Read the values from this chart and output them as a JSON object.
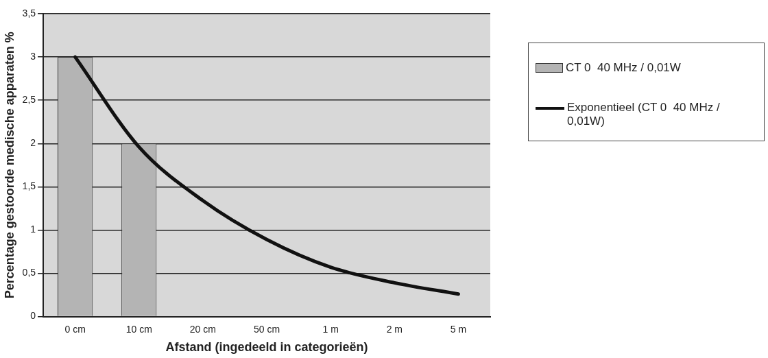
{
  "chart_data": {
    "type": "bar",
    "xlabel": "Afstand (ingedeeld in categorieën)",
    "ylabel": "Percentage gestoorde medische apparaten %",
    "categories": [
      "0 cm",
      "10 cm",
      "20 cm",
      "50 cm",
      "1 m",
      "2 m",
      "5 m"
    ],
    "series": [
      {
        "name": "CT 0  40 MHz / 0,01W",
        "color": "#b4b4b4",
        "values": [
          3,
          2,
          0,
          0,
          0,
          0,
          0
        ]
      },
      {
        "name": "Exponentieel (CT 0  40 MHz / 0,01W)",
        "type": "line",
        "color": "#111111",
        "values": [
          3,
          1.96,
          1.34,
          0.89,
          0.57,
          0.39,
          0.26
        ]
      }
    ],
    "ylim": [
      0,
      3.5
    ],
    "yticks": [
      0,
      {
        "value": 0.5,
        "label": "0,5"
      },
      1,
      {
        "value": 1.5,
        "label": "1,5"
      },
      2,
      {
        "value": 2.5,
        "label": "2,5"
      },
      3,
      {
        "value": 3.5,
        "label": "3,5"
      }
    ],
    "grid": "y",
    "legend": "right",
    "marker": "none"
  }
}
